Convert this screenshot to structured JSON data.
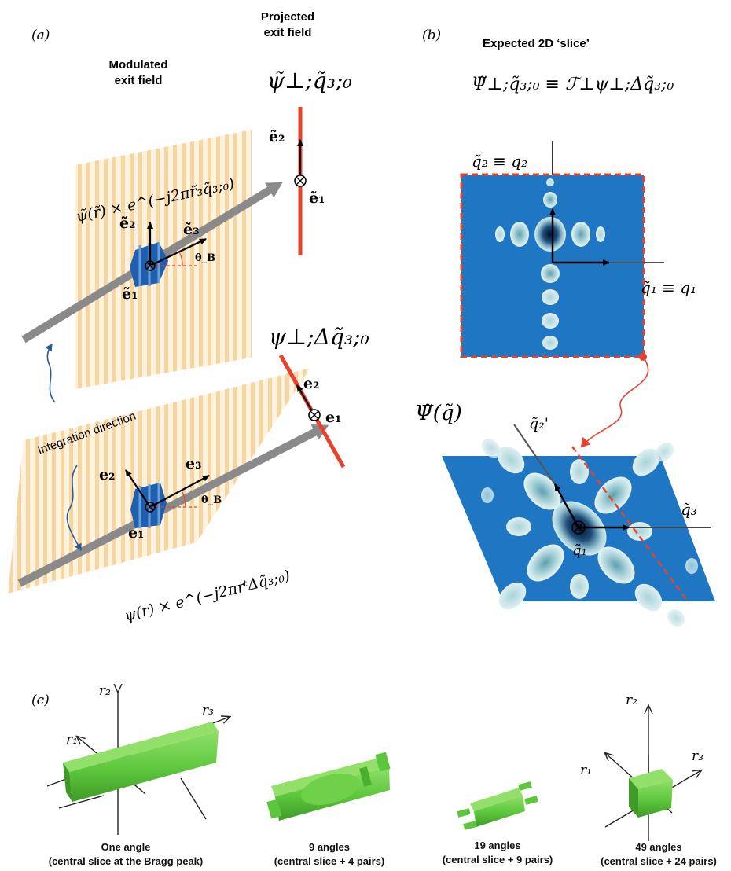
{
  "panels": {
    "a": {
      "label": "(a)",
      "projected_title_line1": "Projected",
      "projected_title_line2": "exit field",
      "modulated_title_line1": "Modulated",
      "modulated_title_line2": "exit field",
      "psi_tilde_perp": "ψ̃⊥;q̃₃;₀",
      "psi_perp_delta": "ψ⊥;Δq̃₃;₀",
      "upper_formula": "ψ̃(r̃) × e^(−j2πr̃₃q̃₃;₀)",
      "lower_formula": "ψ(r) × e^(−j2πrᵗΔq̃₃;₀)",
      "integration_direction": "Integration direction",
      "e1_tilde": "ẽ₁",
      "e2_tilde": "ẽ₂",
      "e3_tilde": "ẽ₃",
      "e1": "e₁",
      "e2": "e₂",
      "e3": "e₃",
      "theta_b": "θ_B"
    },
    "b": {
      "label": "(b)",
      "title": "Expected 2D ‘slice’",
      "equation": "Ψ̃⊥;q̃₃;₀ ≡ ℱ⊥ψ⊥;Δq̃₃;₀",
      "q2_label": "q̃₂ ≡ q₂",
      "q1_label": "q̃₁ ≡ q₁",
      "psi_q": "Ψ̃(q̃)",
      "q2p": "q̃₂'",
      "q3": "q̃₃",
      "q1": "q̃₁"
    },
    "c": {
      "label": "(c)",
      "r1": "r₁",
      "r2": "r₂",
      "r3": "r₃",
      "items": [
        {
          "line1": "One angle",
          "line2": "(central slice at the Bragg peak)"
        },
        {
          "line1": "9 angles",
          "line2": "(central slice + 4 pairs)"
        },
        {
          "line1": "19 angles",
          "line2": "(central slice + 9 pairs)"
        },
        {
          "line1": "49 angles",
          "line2": "(central slice + 24 pairs)"
        }
      ]
    }
  },
  "colors": {
    "stripe": "#f6d9a6",
    "stripe_bg": "#fdf3df",
    "blue_field": "#1f76c2",
    "red": "#e8412c",
    "green": "#5cc63c",
    "grey_arrow": "#8a8a8a"
  }
}
